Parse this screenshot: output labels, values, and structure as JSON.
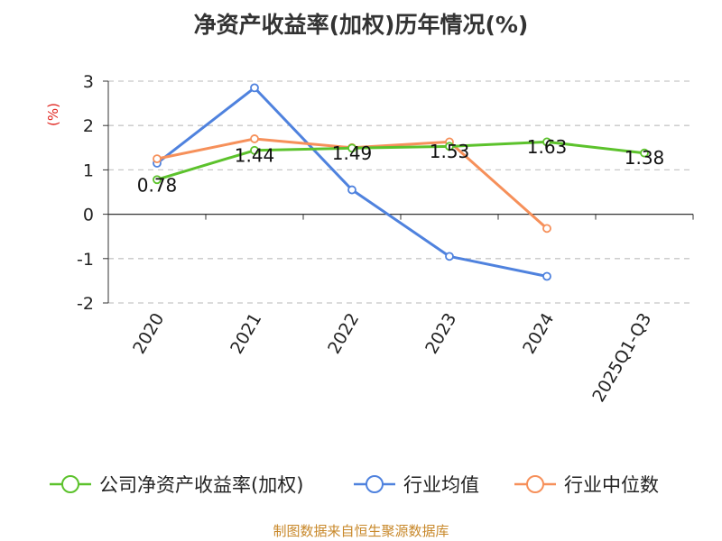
{
  "chart_data": {
    "type": "line",
    "title": "净资产收益率(加权)历年情况(%)",
    "ylabel": "(%)",
    "ylabel_color": "#e0241e",
    "categories": [
      "2020",
      "2021",
      "2022",
      "2023",
      "2024",
      "2025Q1-Q3"
    ],
    "ylim": [
      -2,
      3
    ],
    "yticks": [
      3,
      2,
      1,
      0,
      -1,
      -2
    ],
    "grid": true,
    "legend_position": "bottom",
    "series": [
      {
        "name": "公司净资产收益率(加权)",
        "color": "#5cc22c",
        "values": [
          0.78,
          1.44,
          1.49,
          1.53,
          1.63,
          1.38
        ],
        "labels": [
          "0.78",
          "1.44",
          "1.49",
          "1.53",
          "1.63",
          "1.38"
        ]
      },
      {
        "name": "行业均值",
        "color": "#4f82de",
        "values": [
          1.15,
          2.85,
          0.55,
          -0.95,
          -1.4,
          null
        ]
      },
      {
        "name": "行业中位数",
        "color": "#f6905a",
        "values": [
          1.25,
          1.7,
          1.5,
          1.63,
          -0.32,
          null
        ]
      }
    ]
  },
  "source": {
    "text": "制图数据来自恒生聚源数据库",
    "color": "#c8882a"
  }
}
